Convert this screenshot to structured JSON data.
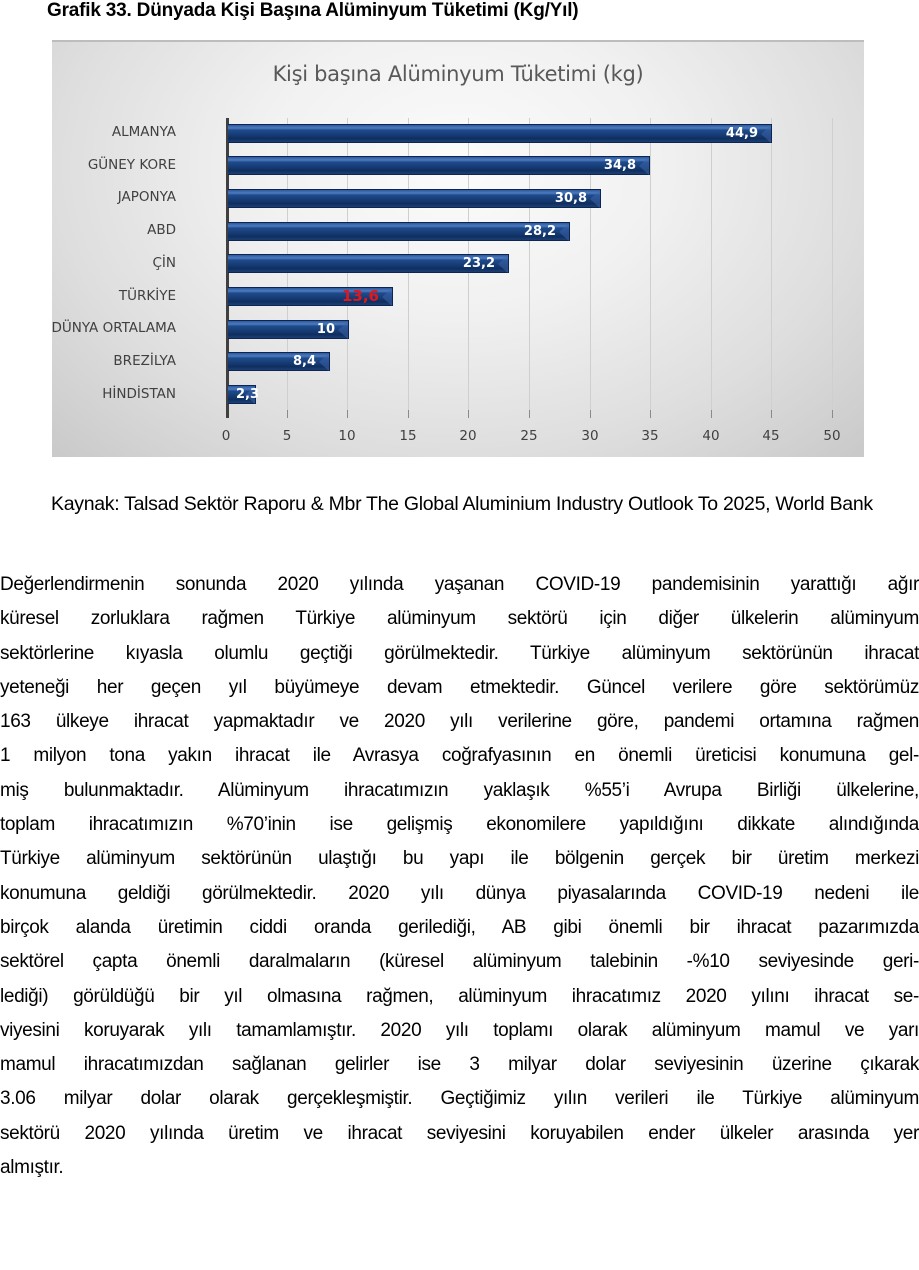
{
  "figure": {
    "caption": "Grafik 33. Dünyada Kişi Başına Alüminyum Tüketimi (Kg/Yıl)",
    "source": "Kaynak: Talsad Sektör Raporu & Mbr The Global Aluminium Industry Outlook To 2025, World Bank"
  },
  "chart_data": {
    "type": "bar",
    "orientation": "horizontal",
    "title": "Kişi başına Alüminyum Tüketimi (kg)",
    "xlabel": "",
    "ylabel": "",
    "xlim": [
      0,
      50
    ],
    "x_ticks": [
      0,
      5,
      10,
      15,
      20,
      25,
      30,
      35,
      40,
      45,
      50
    ],
    "grid": "vertical",
    "legend": "none",
    "categories": [
      "ALMANYA",
      "GÜNEY KORE",
      "JAPONYA",
      "ABD",
      "ÇİN",
      "TÜRKİYE",
      "DÜNYA ORTALAMA",
      "BREZİLYA",
      "HİNDİSTAN"
    ],
    "values": [
      44.9,
      34.8,
      30.8,
      28.2,
      23.2,
      13.6,
      10,
      8.4,
      2.3
    ],
    "value_labels": [
      "44,9",
      "34,8",
      "30,8",
      "28,2",
      "23,2",
      "13,6",
      "10",
      "8,4",
      "2,3"
    ],
    "highlighted_category": "TÜRKİYE",
    "colors": {
      "bar": "#1f4a8a",
      "label": "#ffffff",
      "highlight_label": "#e0181e",
      "axis_text": "#404040"
    }
  },
  "body": {
    "lines": [
      "Değerlendirmenin sonunda 2020 yılında yaşanan COVID-19 pandemisinin yarattığı ağır",
      "küresel zorluklara rağmen Türkiye alüminyum sektörü için diğer ülkelerin alüminyum",
      "sektörlerine kıyasla olumlu geçtiği görülmektedir. Türkiye alüminyum sektörünün ihracat",
      "yeteneği her geçen yıl büyümeye devam etmektedir. Güncel verilere göre sektörümüz",
      "163 ülkeye ihracat yapmaktadır ve 2020 yılı verilerine göre, pandemi ortamına rağmen",
      "1 milyon tona yakın ihracat ile Avrasya coğrafyasının en önemli üreticisi konumuna gel-",
      "miş bulunmaktadır.  Alüminyum ihracatımızın yaklaşık %55’i Avrupa Birliği ülkelerine,",
      "toplam ihracatımızın %70’inin ise gelişmiş ekonomilere yapıldığını dikkate alındığında",
      "Türkiye alüminyum sektörünün ulaştığı bu yapı ile bölgenin gerçek bir üretim merkezi",
      "konumuna geldiği görülmektedir.  2020 yılı dünya piyasalarında COVID-19 nedeni ile",
      "birçok alanda üretimin ciddi oranda gerilediği, AB gibi önemli bir ihracat pazarımızda",
      "sektörel çapta önemli daralmaların (küresel alüminyum talebinin -%10 seviyesinde geri-",
      "lediği) görüldüğü bir yıl olmasına rağmen, alüminyum ihracatımız 2020 yılını ihracat se-",
      "viyesini koruyarak yılı tamamlamıştır. 2020 yılı toplamı olarak alüminyum mamul ve yarı",
      "mamul ihracatımızdan sağlanan gelirler ise 3 milyar dolar seviyesinin üzerine çıkarak",
      "3.06 milyar dolar olarak gerçekleşmiştir. Geçtiğimiz yılın verileri ile Türkiye alüminyum",
      "sektörü 2020 yılında üretim ve ihracat seviyesini koruyabilen ender ülkeler arasında yer",
      "almıştır."
    ]
  }
}
